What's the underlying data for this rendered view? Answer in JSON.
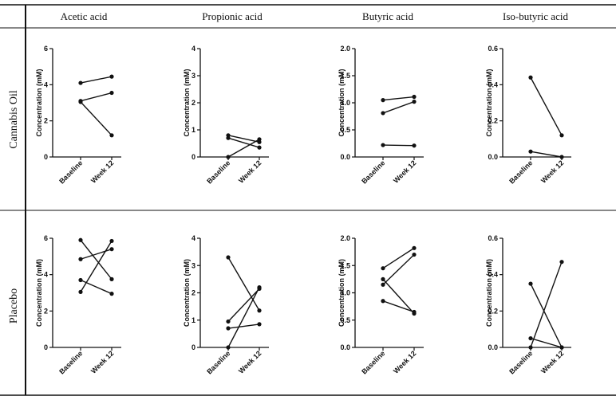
{
  "column_headers": [
    "Acetic acid",
    "Propionic acid",
    "Butyric acid",
    "Iso-butyric acid"
  ],
  "row_labels": [
    "Cannabis Oil",
    "Placebo"
  ],
  "chart_data": [
    {
      "type": "line",
      "group": "Cannabis Oil",
      "analyte": "Acetic acid",
      "categories": [
        "Baseline",
        "Week 12"
      ],
      "ylabel": "Concentration (mM)",
      "ylim": [
        0,
        6
      ],
      "yticks": [
        0,
        2,
        4,
        6
      ],
      "series": [
        {
          "values": [
            4.1,
            4.45
          ]
        },
        {
          "values": [
            3.1,
            3.55
          ]
        },
        {
          "values": [
            3.05,
            1.2
          ]
        }
      ]
    },
    {
      "type": "line",
      "group": "Cannabis Oil",
      "analyte": "Propionic acid",
      "categories": [
        "Baseline",
        "Week 12"
      ],
      "ylabel": "Concentration (mM)",
      "ylim": [
        0,
        4
      ],
      "yticks": [
        0,
        1,
        2,
        3,
        4
      ],
      "series": [
        {
          "values": [
            0.8,
            0.55
          ]
        },
        {
          "values": [
            0.7,
            0.35
          ]
        },
        {
          "values": [
            0.0,
            0.65
          ]
        }
      ]
    },
    {
      "type": "line",
      "group": "Cannabis Oil",
      "analyte": "Butyric acid",
      "categories": [
        "Baseline",
        "Week 12"
      ],
      "ylabel": "Concentration (mM)",
      "ylim": [
        0,
        2
      ],
      "yticks": [
        "0.0",
        "0.5",
        "1.0",
        "1.5",
        "2.0"
      ],
      "series": [
        {
          "values": [
            1.05,
            1.11
          ]
        },
        {
          "values": [
            0.81,
            1.02
          ]
        },
        {
          "values": [
            0.22,
            0.21
          ]
        }
      ]
    },
    {
      "type": "line",
      "group": "Cannabis Oil",
      "analyte": "Iso-butyric acid",
      "categories": [
        "Baseline",
        "Week 12"
      ],
      "ylabel": "Concentration (mM)",
      "ylim": [
        0,
        0.6
      ],
      "yticks": [
        "0.0",
        "0.2",
        "0.4",
        "0.6"
      ],
      "series": [
        {
          "values": [
            0.44,
            0.12
          ]
        },
        {
          "values": [
            0.03,
            0.0
          ]
        }
      ]
    },
    {
      "type": "line",
      "group": "Placebo",
      "analyte": "Acetic acid",
      "categories": [
        "Baseline",
        "Week 12"
      ],
      "ylabel": "Concentration (mM)",
      "ylim": [
        0,
        6
      ],
      "yticks": [
        0,
        2,
        4,
        6
      ],
      "series": [
        {
          "values": [
            5.9,
            3.75
          ]
        },
        {
          "values": [
            4.85,
            5.4
          ]
        },
        {
          "values": [
            3.7,
            2.95
          ]
        },
        {
          "values": [
            3.05,
            5.85
          ]
        }
      ]
    },
    {
      "type": "line",
      "group": "Placebo",
      "analyte": "Propionic acid",
      "categories": [
        "Baseline",
        "Week 12"
      ],
      "ylabel": "Concentration (mM)",
      "ylim": [
        0,
        4
      ],
      "yticks": [
        0,
        1,
        2,
        3,
        4
      ],
      "series": [
        {
          "values": [
            3.3,
            1.35
          ]
        },
        {
          "values": [
            0.95,
            2.15
          ]
        },
        {
          "values": [
            0.7,
            0.85
          ]
        },
        {
          "values": [
            0.0,
            2.2
          ]
        }
      ]
    },
    {
      "type": "line",
      "group": "Placebo",
      "analyte": "Butyric acid",
      "categories": [
        "Baseline",
        "Week 12"
      ],
      "ylabel": "Concentration (mM)",
      "ylim": [
        0,
        2
      ],
      "yticks": [
        "0.0",
        "0.5",
        "1.0",
        "1.5",
        "2.0"
      ],
      "series": [
        {
          "values": [
            1.45,
            1.82
          ]
        },
        {
          "values": [
            1.25,
            0.62
          ]
        },
        {
          "values": [
            1.15,
            1.7
          ]
        },
        {
          "values": [
            0.85,
            0.65
          ]
        }
      ]
    },
    {
      "type": "line",
      "group": "Placebo",
      "analyte": "Iso-butyric acid",
      "categories": [
        "Baseline",
        "Week 12"
      ],
      "ylabel": "Concentration (mM)",
      "ylim": [
        0,
        0.6
      ],
      "yticks": [
        "0.0",
        "0.2",
        "0.4",
        "0.6"
      ],
      "series": [
        {
          "values": [
            0.35,
            0.0
          ]
        },
        {
          "values": [
            0.05,
            0.0
          ]
        },
        {
          "values": [
            0.0,
            0.47
          ]
        }
      ]
    }
  ]
}
